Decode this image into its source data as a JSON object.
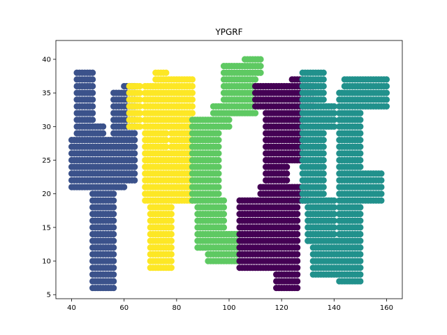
{
  "chart_data": {
    "type": "scatter",
    "title": "YPGRF",
    "xlabel": "",
    "ylabel": "",
    "xlim": [
      34,
      166
    ],
    "ylim": [
      4.4,
      42.8
    ],
    "xticks": [
      40,
      60,
      80,
      100,
      120,
      140,
      160
    ],
    "yticks": [
      5,
      10,
      15,
      20,
      25,
      30,
      35,
      40
    ],
    "grid": false,
    "legend": "none",
    "marker": "circle",
    "series": [
      {
        "color": "#3b528b",
        "regions": [
          {
            "x": [
              40,
              60
            ],
            "y": [
              21,
              28
            ]
          },
          {
            "x": [
              42,
              48
            ],
            "y": [
              28,
              38
            ]
          },
          {
            "x": [
              44,
              52
            ],
            "y": [
              26,
              30
            ]
          },
          {
            "x": [
              48,
              56
            ],
            "y": [
              6,
              25
            ]
          },
          {
            "x": [
              56,
              64
            ],
            "y": [
              22,
              35
            ]
          },
          {
            "x": [
              60,
              64
            ],
            "y": [
              30,
              36
            ]
          }
        ]
      },
      {
        "color": "#fde725",
        "regions": [
          {
            "x": [
              70,
              78
            ],
            "y": [
              9,
              19
            ]
          },
          {
            "x": [
              68,
              76
            ],
            "y": [
              19,
              36
            ]
          },
          {
            "x": [
              70,
              86
            ],
            "y": [
              19,
              26
            ]
          },
          {
            "x": [
              72,
              76
            ],
            "y": [
              34,
              38
            ]
          },
          {
            "x": [
              76,
              86
            ],
            "y": [
              30,
              37
            ]
          },
          {
            "x": [
              78,
              86
            ],
            "y": [
              26,
              30
            ]
          },
          {
            "x": [
              62,
              66
            ],
            "y": [
              30,
              36
            ]
          }
        ]
      },
      {
        "color": "#5ec962",
        "regions": [
          {
            "x": [
              86,
              96
            ],
            "y": [
              19,
              31
            ]
          },
          {
            "x": [
              88,
              98
            ],
            "y": [
              12,
              19
            ]
          },
          {
            "x": [
              92,
              104
            ],
            "y": [
              10,
              14
            ]
          },
          {
            "x": [
              94,
              100
            ],
            "y": [
              30,
              33
            ]
          },
          {
            "x": [
              98,
              110
            ],
            "y": [
              32,
              39
            ]
          },
          {
            "x": [
              106,
              112
            ],
            "y": [
              38,
              40
            ]
          }
        ]
      },
      {
        "color": "#440154",
        "regions": [
          {
            "x": [
              104,
              126
            ],
            "y": [
              9,
              19
            ]
          },
          {
            "x": [
              112,
              130
            ],
            "y": [
              19,
              21
            ]
          },
          {
            "x": [
              114,
              122
            ],
            "y": [
              21,
              32
            ]
          },
          {
            "x": [
              110,
              132
            ],
            "y": [
              33,
              36
            ]
          },
          {
            "x": [
              122,
              128
            ],
            "y": [
              25,
              33
            ]
          },
          {
            "x": [
              124,
              130
            ],
            "y": [
              36,
              37
            ]
          },
          {
            "x": [
              118,
              126
            ],
            "y": [
              6,
              9
            ]
          }
        ]
      },
      {
        "color": "#21918c",
        "regions": [
          {
            "x": [
              128,
              136
            ],
            "y": [
              19,
              38
            ]
          },
          {
            "x": [
              130,
              140
            ],
            "y": [
              13,
              19
            ]
          },
          {
            "x": [
              132,
              142
            ],
            "y": [
              8,
              13
            ]
          },
          {
            "x": [
              136,
              140
            ],
            "y": [
              30,
              33
            ]
          },
          {
            "x": [
              142,
              150
            ],
            "y": [
              7,
              35
            ]
          },
          {
            "x": [
              144,
              160
            ],
            "y": [
              33,
              37
            ]
          },
          {
            "x": [
              144,
              158
            ],
            "y": [
              19,
              23
            ]
          }
        ]
      }
    ]
  }
}
